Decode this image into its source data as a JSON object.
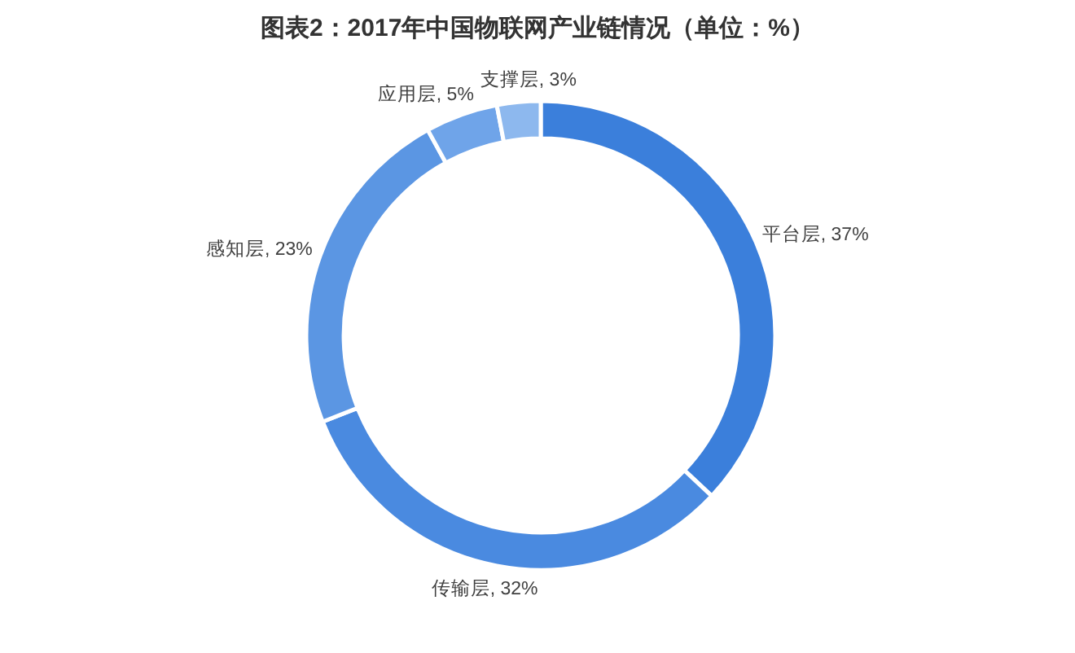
{
  "chart_data": {
    "type": "donut",
    "title": "图表2：2017年中国物联网产业链情况（单位：%）",
    "categories": [
      "平台层",
      "传输层",
      "感知层",
      "应用层",
      "支撑层"
    ],
    "values": [
      37,
      32,
      23,
      5,
      3
    ],
    "colors": [
      "#3b7fdb",
      "#4a8ae0",
      "#5b96e3",
      "#6fa4e9",
      "#8db8ee"
    ],
    "value_labels": [
      "37%",
      "32%",
      "23%",
      "5%",
      "3%"
    ]
  }
}
